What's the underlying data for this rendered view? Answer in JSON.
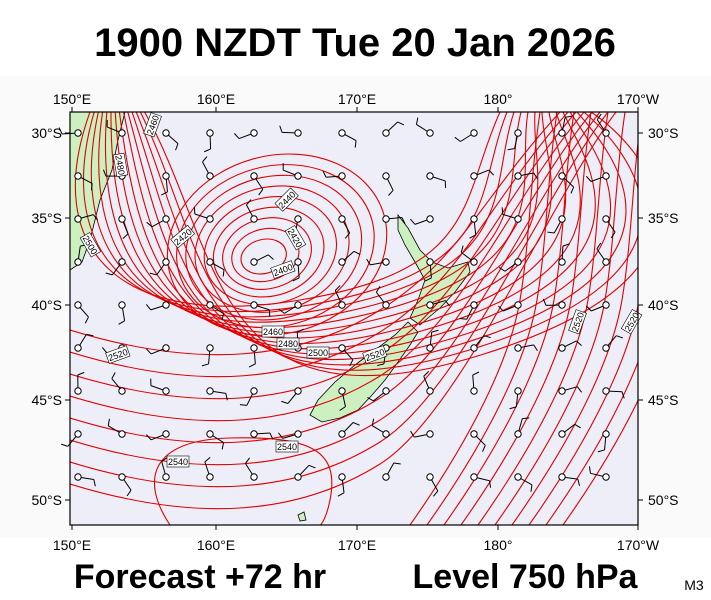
{
  "header": {
    "title": "1900 NZDT Tue 20 Jan 2026"
  },
  "map": {
    "lon_labels": [
      "150°E",
      "160°E",
      "170°E",
      "180°",
      "170°W"
    ],
    "lat_labels": [
      "30°S",
      "35°S",
      "40°S",
      "45°S",
      "50°S"
    ],
    "contour_labels": [
      2460,
      2480,
      2440,
      2420,
      2420,
      2400,
      2500,
      2460,
      2480,
      2500,
      2520,
      2520,
      2540,
      2540,
      2520,
      2520
    ]
  },
  "footer": {
    "forecast": "Forecast +72 hr",
    "level": "Level 750 hPa",
    "code": "M3"
  }
}
